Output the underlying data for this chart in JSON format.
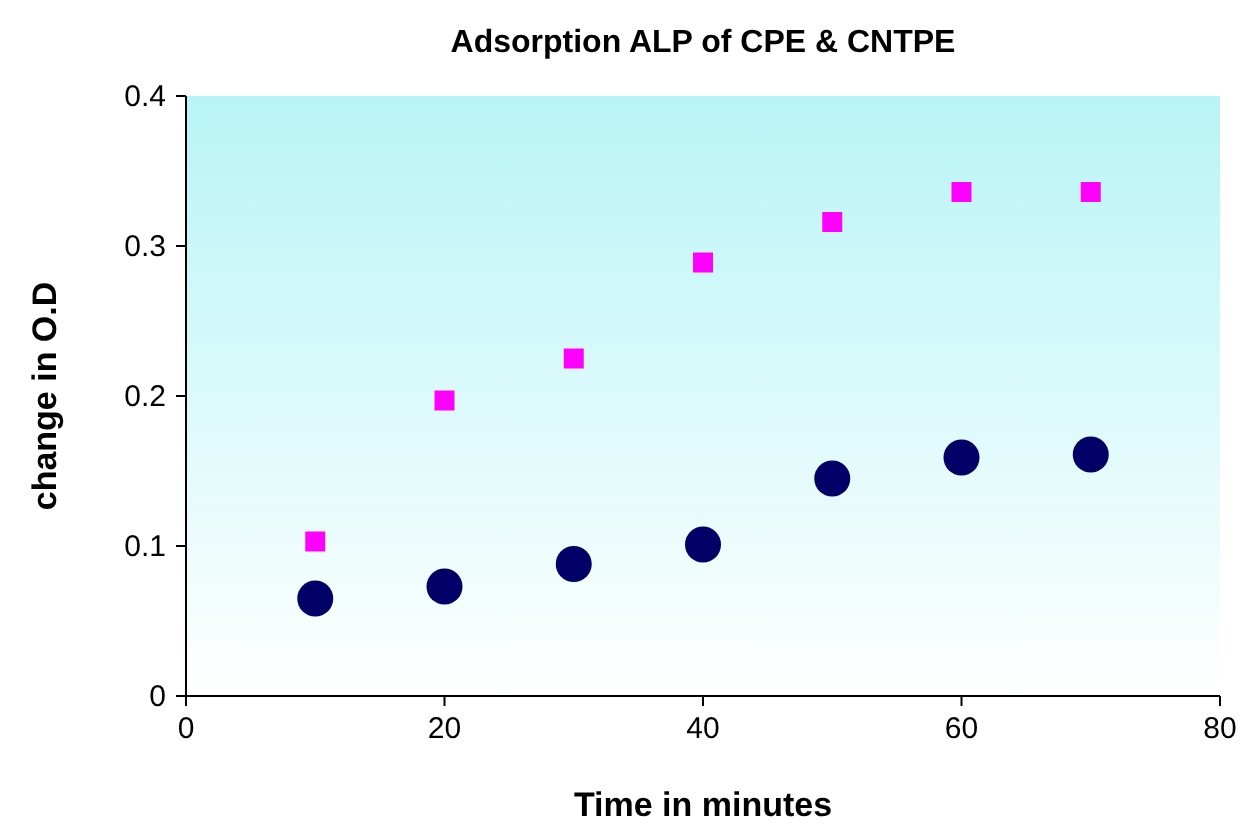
{
  "chart_data": {
    "type": "scatter",
    "title": "Adsorption ALP of CPE & CNTPE",
    "xlabel": "Time in minutes",
    "ylabel": "change in O.D",
    "x": [
      10,
      20,
      30,
      40,
      50,
      60,
      70
    ],
    "series": [
      {
        "color": "#ff00ff",
        "marker": "square",
        "values": [
          0.103,
          0.197,
          0.225,
          0.289,
          0.316,
          0.336,
          0.336
        ]
      },
      {
        "color": "#000066",
        "marker": "circle",
        "values": [
          0.065,
          0.073,
          0.088,
          0.101,
          0.145,
          0.159,
          0.161
        ]
      }
    ],
    "xlim": [
      0,
      80
    ],
    "xticks": [
      0,
      20,
      40,
      60,
      80
    ],
    "ylim": [
      0,
      0.4
    ],
    "yticks": [
      0,
      0.1,
      0.2,
      0.3,
      0.4
    ],
    "grid": false
  }
}
